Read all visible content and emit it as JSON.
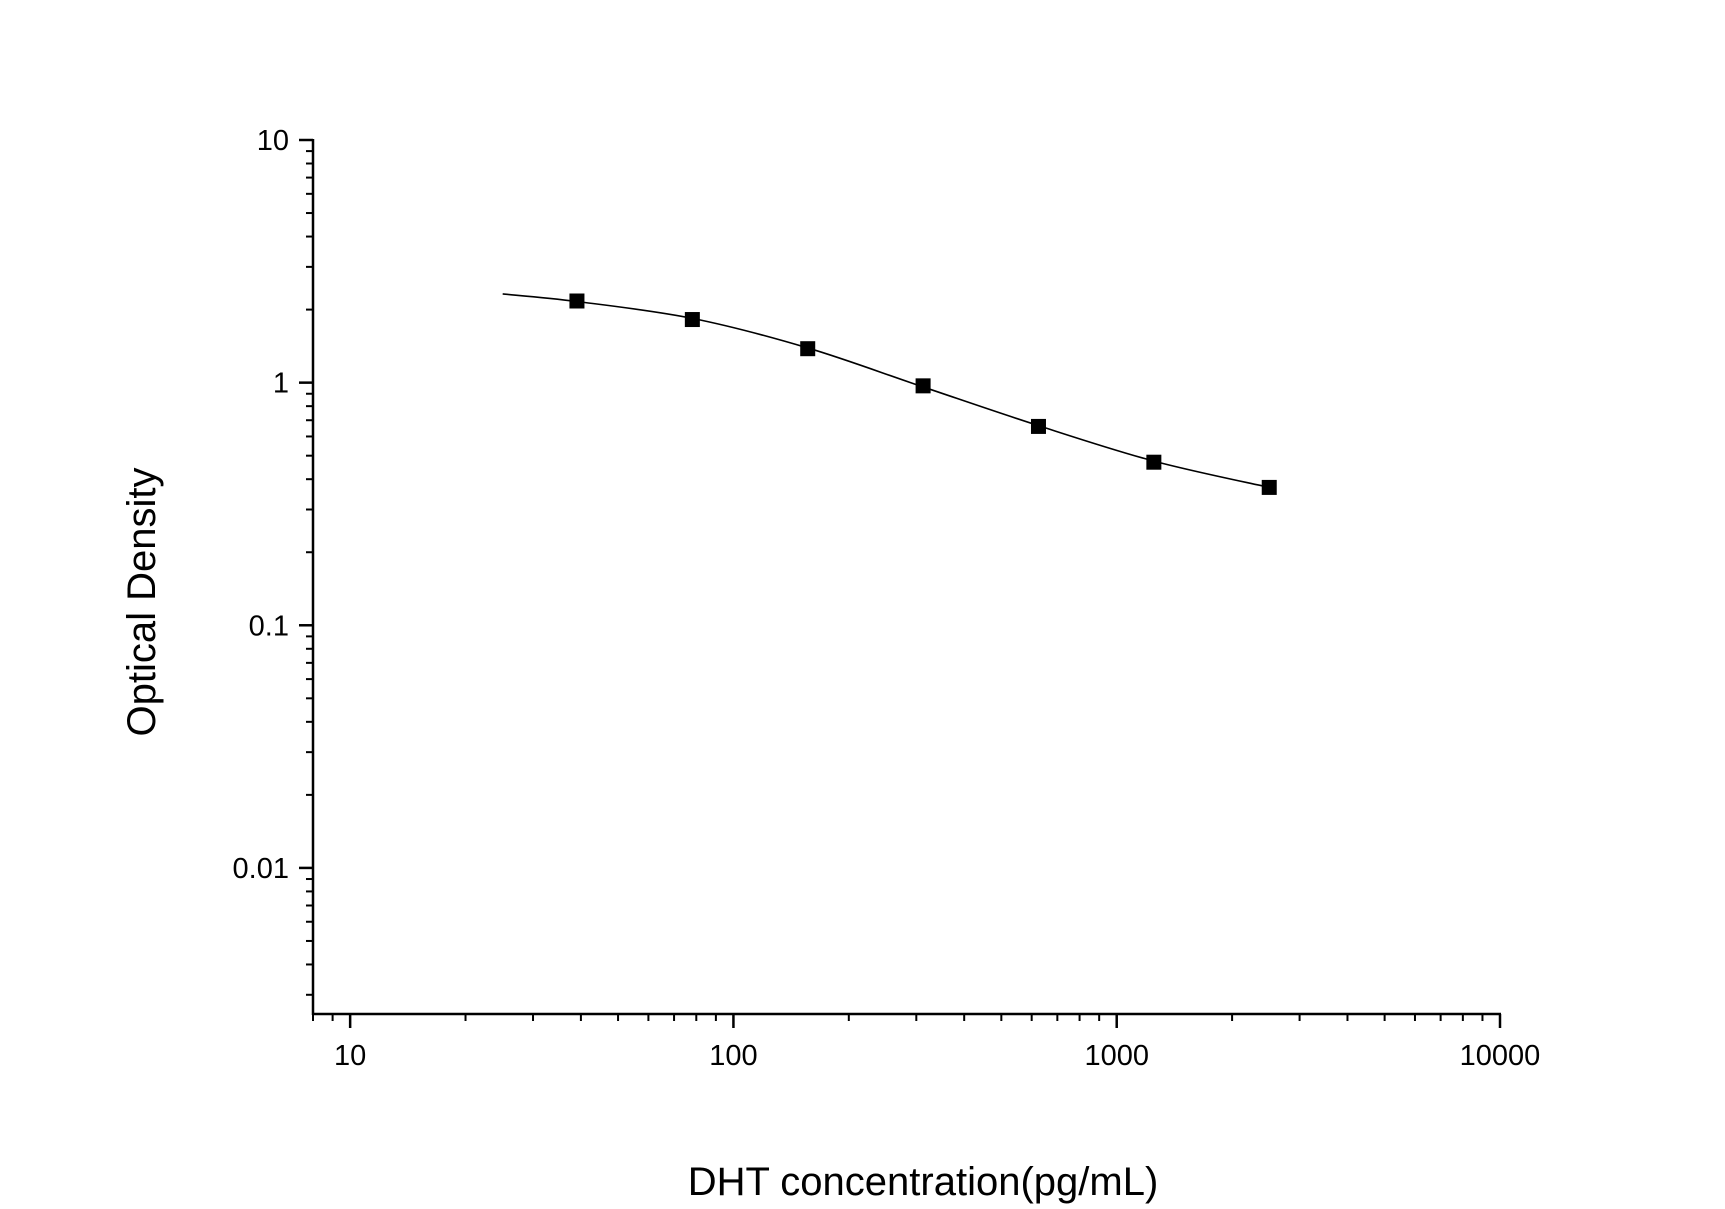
{
  "chart_data": {
    "type": "scatter",
    "title": "",
    "xlabel": "DHT concentration(pg/mL)",
    "ylabel": "Optical Density",
    "x_scale": "log",
    "y_scale": "log",
    "xlim": [
      8,
      10000
    ],
    "ylim": [
      0.0025,
      10
    ],
    "x_ticks": [
      {
        "value": 10,
        "label": "10"
      },
      {
        "value": 100,
        "label": "100"
      },
      {
        "value": 1000,
        "label": "1000"
      },
      {
        "value": 10000,
        "label": "10000"
      }
    ],
    "y_ticks": [
      {
        "value": 0.01,
        "label": "0.01"
      },
      {
        "value": 0.1,
        "label": "0.1"
      },
      {
        "value": 1,
        "label": "1"
      },
      {
        "value": 10,
        "label": "10"
      }
    ],
    "series": [
      {
        "marker": "square",
        "color": "#000000",
        "x": [
          39.06,
          78.13,
          156.25,
          312.5,
          625,
          1250,
          2500
        ],
        "y": [
          2.17,
          1.82,
          1.38,
          0.97,
          0.66,
          0.47,
          0.37
        ]
      }
    ],
    "fit_curve": {
      "color": "#000000",
      "x": [
        25,
        39.06,
        78.13,
        156.25,
        312.5,
        625,
        1250,
        2500
      ],
      "y": [
        2.32,
        2.16,
        1.84,
        1.39,
        0.96,
        0.665,
        0.475,
        0.37
      ]
    },
    "grid": false,
    "legend": "none"
  }
}
